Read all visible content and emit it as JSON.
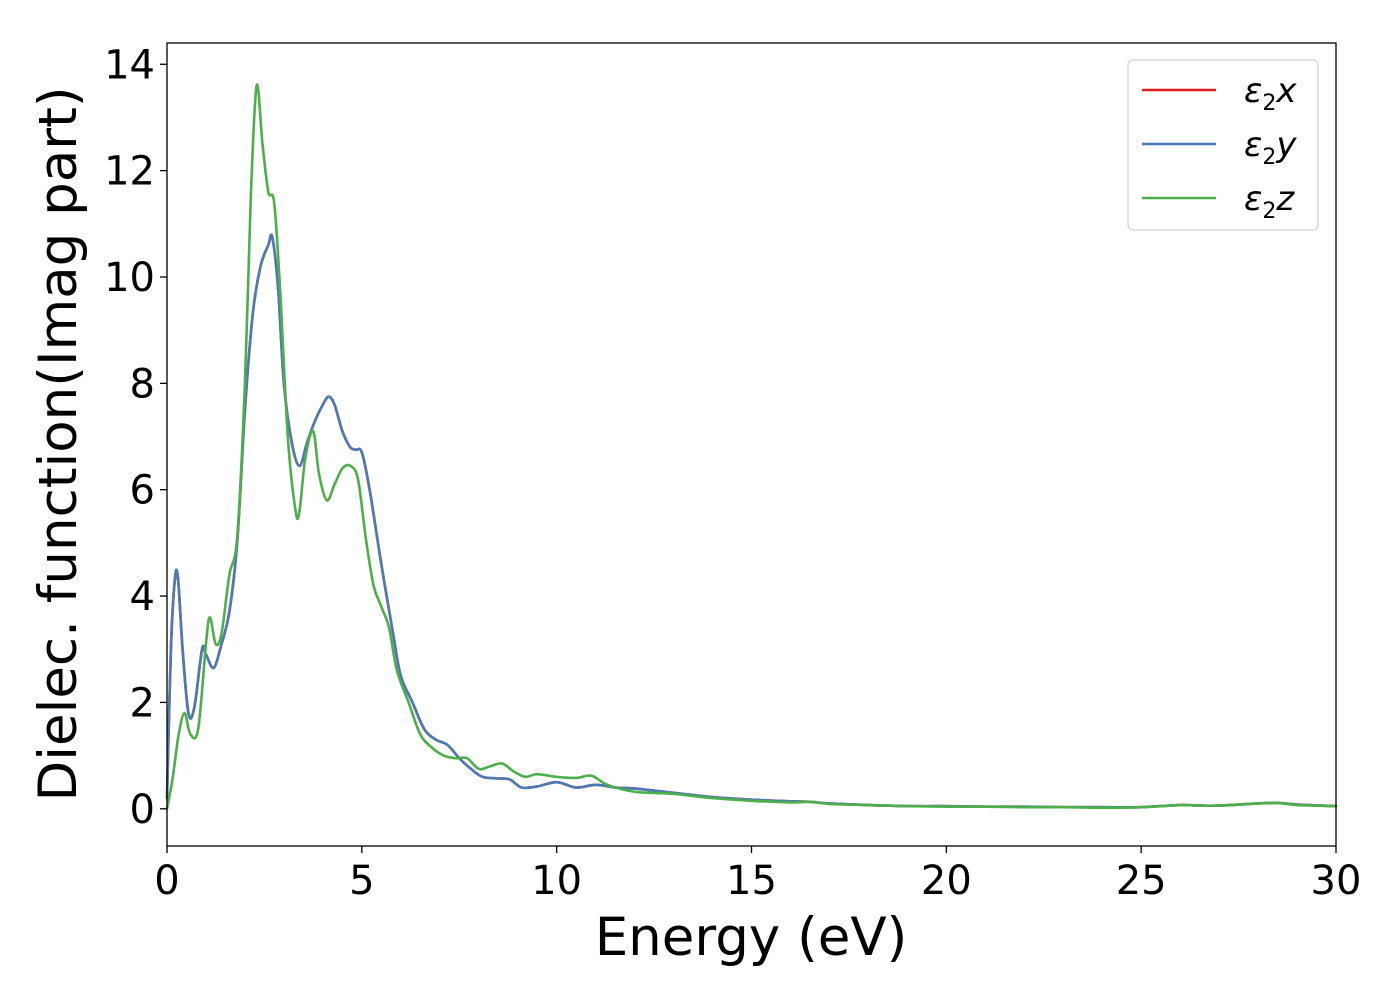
{
  "chart_data": {
    "type": "line",
    "title": "",
    "xlabel": "Energy (eV)",
    "ylabel": "Dielec. function(Imag part)",
    "xlim": [
      0,
      30
    ],
    "ylim": [
      -0.7,
      14.4
    ],
    "xticks": [
      0,
      5,
      10,
      15,
      20,
      25,
      30
    ],
    "yticks": [
      0,
      2,
      4,
      6,
      8,
      10,
      12,
      14
    ],
    "grid": false,
    "legend_position": "top-right",
    "series": [
      {
        "name": "ε2x",
        "legend": {
          "base": "ε",
          "sub": "2",
          "tail": "x"
        },
        "color": "#e41a1c",
        "x": [
          0,
          0.1,
          0.2,
          0.28,
          0.4,
          0.55,
          0.7,
          0.9,
          1.0,
          1.2,
          1.4,
          1.6,
          1.8,
          2.0,
          2.2,
          2.4,
          2.6,
          2.7,
          2.85,
          3.0,
          3.2,
          3.4,
          3.6,
          3.8,
          4.0,
          4.15,
          4.3,
          4.5,
          4.7,
          4.85,
          5.0,
          5.2,
          5.5,
          5.8,
          6.0,
          6.3,
          6.6,
          6.9,
          7.2,
          7.5,
          7.8,
          8.1,
          8.5,
          8.8,
          9.1,
          9.5,
          10.0,
          10.5,
          11.0,
          11.5,
          12.0,
          13.0,
          14.0,
          15.0,
          16.0,
          16.5,
          17.0,
          18.0,
          19.0,
          20.0,
          21.0,
          22.0,
          23.0,
          24.0,
          25.0,
          26.0,
          26.5,
          27.0,
          28.0,
          28.5,
          29.0,
          30.0
        ],
        "y": [
          0.2,
          3.0,
          4.3,
          4.35,
          3.0,
          1.8,
          1.9,
          3.0,
          2.9,
          2.65,
          3.1,
          3.7,
          5.0,
          7.5,
          9.3,
          10.2,
          10.6,
          10.75,
          9.8,
          8.0,
          6.9,
          6.45,
          6.9,
          7.3,
          7.6,
          7.75,
          7.6,
          7.1,
          6.8,
          6.75,
          6.7,
          6.0,
          4.6,
          3.3,
          2.5,
          2.0,
          1.5,
          1.3,
          1.2,
          0.95,
          0.75,
          0.6,
          0.57,
          0.55,
          0.4,
          0.42,
          0.5,
          0.4,
          0.45,
          0.4,
          0.38,
          0.3,
          0.22,
          0.17,
          0.14,
          0.13,
          0.1,
          0.07,
          0.05,
          0.05,
          0.04,
          0.04,
          0.03,
          0.03,
          0.03,
          0.07,
          0.06,
          0.06,
          0.1,
          0.11,
          0.08,
          0.05
        ]
      },
      {
        "name": "ε2y",
        "legend": {
          "base": "ε",
          "sub": "2",
          "tail": "y"
        },
        "color": "#4a7bb5",
        "x": [
          0,
          0.1,
          0.2,
          0.28,
          0.4,
          0.55,
          0.7,
          0.9,
          1.0,
          1.2,
          1.4,
          1.6,
          1.8,
          2.0,
          2.2,
          2.4,
          2.6,
          2.7,
          2.85,
          3.0,
          3.2,
          3.4,
          3.6,
          3.8,
          4.0,
          4.15,
          4.3,
          4.5,
          4.7,
          4.85,
          5.0,
          5.2,
          5.5,
          5.8,
          6.0,
          6.3,
          6.6,
          6.9,
          7.2,
          7.5,
          7.8,
          8.1,
          8.5,
          8.8,
          9.1,
          9.5,
          10.0,
          10.5,
          11.0,
          11.5,
          12.0,
          13.0,
          14.0,
          15.0,
          16.0,
          16.5,
          17.0,
          18.0,
          19.0,
          20.0,
          21.0,
          22.0,
          23.0,
          24.0,
          25.0,
          26.0,
          26.5,
          27.0,
          28.0,
          28.5,
          29.0,
          30.0
        ],
        "y": [
          0.2,
          3.0,
          4.3,
          4.35,
          3.0,
          1.8,
          1.9,
          3.0,
          2.9,
          2.65,
          3.1,
          3.7,
          5.0,
          7.5,
          9.3,
          10.2,
          10.6,
          10.75,
          9.8,
          8.0,
          6.9,
          6.45,
          6.9,
          7.3,
          7.6,
          7.75,
          7.6,
          7.1,
          6.8,
          6.75,
          6.7,
          6.0,
          4.6,
          3.3,
          2.5,
          2.0,
          1.5,
          1.3,
          1.2,
          0.95,
          0.75,
          0.6,
          0.57,
          0.55,
          0.4,
          0.42,
          0.5,
          0.4,
          0.45,
          0.4,
          0.38,
          0.3,
          0.22,
          0.17,
          0.14,
          0.13,
          0.1,
          0.07,
          0.05,
          0.05,
          0.04,
          0.04,
          0.03,
          0.03,
          0.03,
          0.07,
          0.06,
          0.06,
          0.1,
          0.11,
          0.08,
          0.05
        ]
      },
      {
        "name": "ε2z",
        "legend": {
          "base": "ε",
          "sub": "2",
          "tail": "z"
        },
        "color": "#4daf4a",
        "x": [
          0,
          0.15,
          0.3,
          0.45,
          0.6,
          0.8,
          1.0,
          1.1,
          1.25,
          1.4,
          1.6,
          1.8,
          2.0,
          2.15,
          2.3,
          2.45,
          2.6,
          2.75,
          2.9,
          3.1,
          3.3,
          3.4,
          3.55,
          3.75,
          3.9,
          4.1,
          4.3,
          4.5,
          4.7,
          4.9,
          5.1,
          5.3,
          5.5,
          5.7,
          5.9,
          6.2,
          6.5,
          6.8,
          7.1,
          7.4,
          7.7,
          8.0,
          8.3,
          8.6,
          8.9,
          9.2,
          9.5,
          10.0,
          10.5,
          10.9,
          11.3,
          12.0,
          13.0,
          14.0,
          15.0,
          16.0,
          16.5,
          17.0,
          18.0,
          19.0,
          20.0,
          21.0,
          22.0,
          23.0,
          24.0,
          25.0,
          26.0,
          26.5,
          27.0,
          28.0,
          28.5,
          29.0,
          30.0
        ],
        "y": [
          0.0,
          0.6,
          1.4,
          1.8,
          1.4,
          1.5,
          3.1,
          3.6,
          3.1,
          3.3,
          4.4,
          5.1,
          8.0,
          11.5,
          13.6,
          12.5,
          11.6,
          11.4,
          9.8,
          7.0,
          5.6,
          5.6,
          6.6,
          7.1,
          6.3,
          5.8,
          6.1,
          6.4,
          6.45,
          6.2,
          5.1,
          4.2,
          3.8,
          3.4,
          2.6,
          2.0,
          1.4,
          1.15,
          1.0,
          0.95,
          0.95,
          0.75,
          0.8,
          0.85,
          0.7,
          0.6,
          0.65,
          0.6,
          0.58,
          0.62,
          0.45,
          0.32,
          0.28,
          0.2,
          0.15,
          0.12,
          0.13,
          0.09,
          0.07,
          0.05,
          0.04,
          0.04,
          0.03,
          0.03,
          0.02,
          0.03,
          0.07,
          0.06,
          0.06,
          0.1,
          0.11,
          0.07,
          0.05
        ]
      }
    ]
  }
}
